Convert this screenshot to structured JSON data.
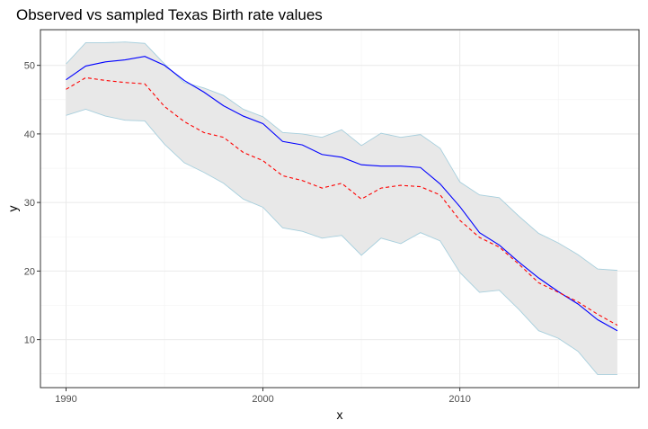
{
  "chart_data": {
    "type": "line",
    "title": "Observed vs sampled Texas Birth rate values",
    "xlabel": "x",
    "ylabel": "y",
    "xlim": [
      1988.7,
      2019.1
    ],
    "ylim": [
      3.0,
      55.2
    ],
    "x_ticks": [
      1990,
      2000,
      2010
    ],
    "y_ticks": [
      10,
      20,
      30,
      40,
      50
    ],
    "grid": true,
    "legend": "none",
    "x": [
      1990,
      1991,
      1992,
      1993,
      1994,
      1995,
      1996,
      1997,
      1998,
      1999,
      2000,
      2001,
      2002,
      2003,
      2004,
      2005,
      2006,
      2007,
      2008,
      2009,
      2010,
      2011,
      2012,
      2013,
      2014,
      2015,
      2016,
      2017,
      2018
    ],
    "band": {
      "upper": [
        50.2,
        53.3,
        53.3,
        53.4,
        53.2,
        50.2,
        47.5,
        46.7,
        45.6,
        43.6,
        42.5,
        40.2,
        40.0,
        39.5,
        40.6,
        38.3,
        40.1,
        39.5,
        39.9,
        37.9,
        33.0,
        31.1,
        30.7,
        28.0,
        25.5,
        24.1,
        22.4,
        20.3,
        20.1
      ],
      "lower": [
        42.7,
        43.6,
        42.6,
        42.0,
        41.9,
        38.5,
        35.8,
        34.4,
        32.8,
        30.5,
        29.3,
        26.3,
        25.8,
        24.8,
        25.2,
        22.3,
        24.8,
        24.0,
        25.6,
        24.4,
        19.8,
        16.9,
        17.2,
        14.4,
        11.3,
        10.2,
        8.3,
        4.9,
        4.9
      ],
      "fill": "#e8e8e8",
      "stroke": "#a7cfdd"
    },
    "series": [
      {
        "values": [
          47.9,
          49.9,
          50.5,
          50.8,
          51.3,
          50.0,
          47.8,
          46.1,
          44.1,
          42.6,
          41.5,
          38.9,
          38.4,
          37.0,
          36.6,
          35.5,
          35.3,
          35.3,
          35.1,
          32.7,
          29.4,
          25.6,
          23.8,
          21.3,
          19.0,
          17.0,
          15.2,
          12.9,
          11.3
        ],
        "color": "#0000ff",
        "style": "solid"
      },
      {
        "values": [
          46.5,
          48.2,
          47.8,
          47.5,
          47.3,
          44.0,
          41.8,
          40.2,
          39.5,
          37.3,
          36.1,
          33.9,
          33.2,
          32.1,
          32.8,
          30.5,
          32.1,
          32.5,
          32.3,
          31.1,
          27.4,
          24.9,
          23.5,
          21.0,
          18.3,
          16.9,
          15.5,
          13.7,
          12.1
        ],
        "color": "#ff0000",
        "style": "dashed"
      }
    ]
  }
}
